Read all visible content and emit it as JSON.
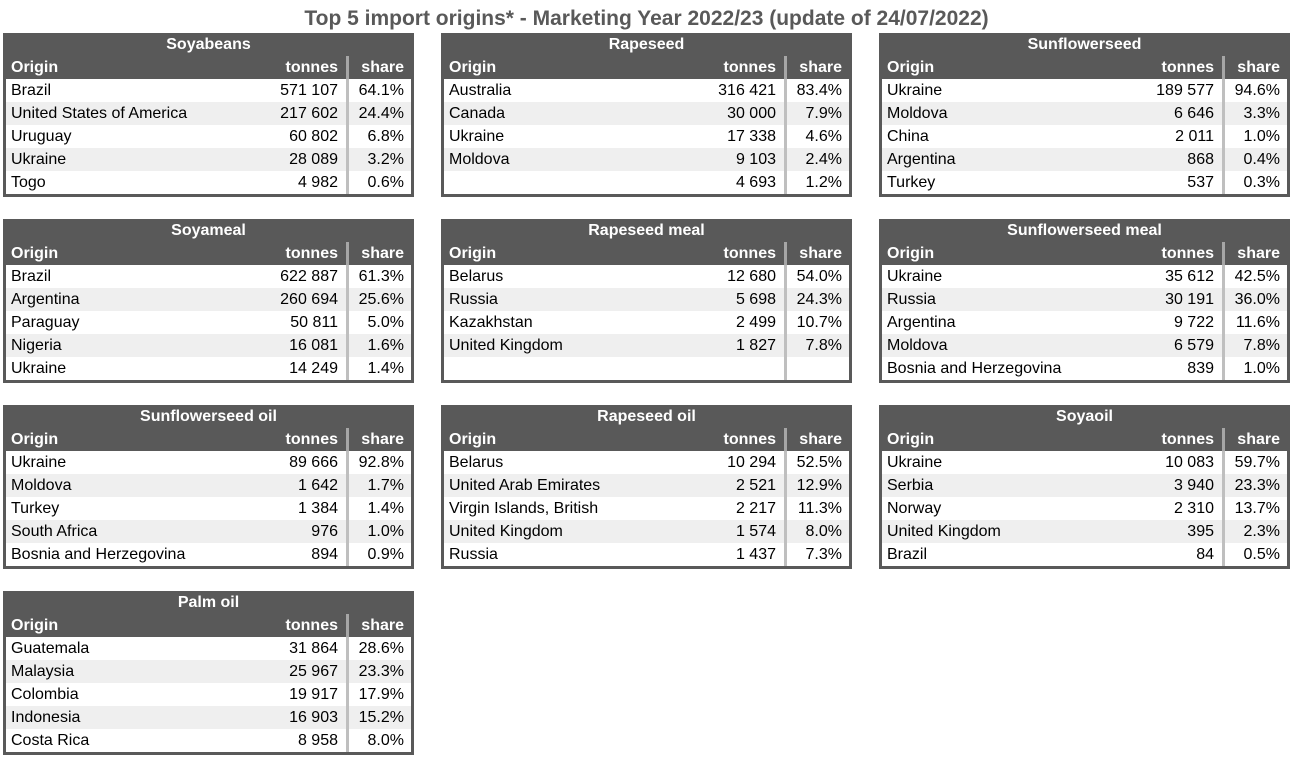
{
  "page_title": "Top 5 import origins* - Marketing Year 2022/23 (update of 24/07/2022)",
  "columns": {
    "origin": "Origin",
    "tonnes": "tonnes",
    "share": "share"
  },
  "colors": {
    "header_bg": "#595959",
    "header_text": "#ffffff",
    "stripe": "#efefef",
    "border": "#595959",
    "separator": "#bfbfbf",
    "separator_header": "#a6a6a6",
    "title_color": "#595959",
    "body_text": "#000000"
  },
  "tables": [
    {
      "title": "Soyabeans",
      "rows": [
        {
          "origin": "Brazil",
          "tonnes": "571 107",
          "share": "64.1%"
        },
        {
          "origin": "United States of America",
          "tonnes": "217 602",
          "share": "24.4%"
        },
        {
          "origin": "Uruguay",
          "tonnes": "60 802",
          "share": "6.8%"
        },
        {
          "origin": "Ukraine",
          "tonnes": "28 089",
          "share": "3.2%"
        },
        {
          "origin": "Togo",
          "tonnes": "4 982",
          "share": "0.6%"
        }
      ]
    },
    {
      "title": "Rapeseed",
      "rows": [
        {
          "origin": "Australia",
          "tonnes": "316 421",
          "share": "83.4%"
        },
        {
          "origin": "Canada",
          "tonnes": "30 000",
          "share": "7.9%"
        },
        {
          "origin": "Ukraine",
          "tonnes": "17 338",
          "share": "4.6%"
        },
        {
          "origin": "Moldova",
          "tonnes": "9 103",
          "share": "2.4%"
        },
        {
          "origin": "",
          "tonnes": "4 693",
          "share": "1.2%"
        }
      ]
    },
    {
      "title": "Sunflowerseed",
      "rows": [
        {
          "origin": "Ukraine",
          "tonnes": "189 577",
          "share": "94.6%"
        },
        {
          "origin": "Moldova",
          "tonnes": "6 646",
          "share": "3.3%"
        },
        {
          "origin": "China",
          "tonnes": "2 011",
          "share": "1.0%"
        },
        {
          "origin": "Argentina",
          "tonnes": "868",
          "share": "0.4%"
        },
        {
          "origin": "Turkey",
          "tonnes": "537",
          "share": "0.3%"
        }
      ]
    },
    {
      "title": "Soyameal",
      "rows": [
        {
          "origin": "Brazil",
          "tonnes": "622 887",
          "share": "61.3%"
        },
        {
          "origin": "Argentina",
          "tonnes": "260 694",
          "share": "25.6%"
        },
        {
          "origin": "Paraguay",
          "tonnes": "50 811",
          "share": "5.0%"
        },
        {
          "origin": "Nigeria",
          "tonnes": "16 081",
          "share": "1.6%"
        },
        {
          "origin": "Ukraine",
          "tonnes": "14 249",
          "share": "1.4%"
        }
      ]
    },
    {
      "title": "Rapeseed meal",
      "rows": [
        {
          "origin": "Belarus",
          "tonnes": "12 680",
          "share": "54.0%"
        },
        {
          "origin": "Russia",
          "tonnes": "5 698",
          "share": "24.3%"
        },
        {
          "origin": "Kazakhstan",
          "tonnes": "2 499",
          "share": "10.7%"
        },
        {
          "origin": "United Kingdom",
          "tonnes": "1 827",
          "share": "7.8%"
        },
        {
          "origin": "",
          "tonnes": "",
          "share": ""
        }
      ]
    },
    {
      "title": "Sunflowerseed meal",
      "rows": [
        {
          "origin": "Ukraine",
          "tonnes": "35 612",
          "share": "42.5%"
        },
        {
          "origin": "Russia",
          "tonnes": "30 191",
          "share": "36.0%"
        },
        {
          "origin": "Argentina",
          "tonnes": "9 722",
          "share": "11.6%"
        },
        {
          "origin": "Moldova",
          "tonnes": "6 579",
          "share": "7.8%"
        },
        {
          "origin": "Bosnia and Herzegovina",
          "tonnes": "839",
          "share": "1.0%"
        }
      ]
    },
    {
      "title": "Sunflowerseed oil",
      "rows": [
        {
          "origin": "Ukraine",
          "tonnes": "89 666",
          "share": "92.8%"
        },
        {
          "origin": "Moldova",
          "tonnes": "1 642",
          "share": "1.7%"
        },
        {
          "origin": "Turkey",
          "tonnes": "1 384",
          "share": "1.4%"
        },
        {
          "origin": "South Africa",
          "tonnes": "976",
          "share": "1.0%"
        },
        {
          "origin": "Bosnia and Herzegovina",
          "tonnes": "894",
          "share": "0.9%"
        }
      ]
    },
    {
      "title": "Rapeseed oil",
      "rows": [
        {
          "origin": "Belarus",
          "tonnes": "10 294",
          "share": "52.5%"
        },
        {
          "origin": "United Arab Emirates",
          "tonnes": "2 521",
          "share": "12.9%"
        },
        {
          "origin": "Virgin Islands, British",
          "tonnes": "2 217",
          "share": "11.3%"
        },
        {
          "origin": "United Kingdom",
          "tonnes": "1 574",
          "share": "8.0%"
        },
        {
          "origin": "Russia",
          "tonnes": "1 437",
          "share": "7.3%"
        }
      ]
    },
    {
      "title": "Soyaoil",
      "rows": [
        {
          "origin": "Ukraine",
          "tonnes": "10 083",
          "share": "59.7%"
        },
        {
          "origin": "Serbia",
          "tonnes": "3 940",
          "share": "23.3%"
        },
        {
          "origin": "Norway",
          "tonnes": "2 310",
          "share": "13.7%"
        },
        {
          "origin": "United Kingdom",
          "tonnes": "395",
          "share": "2.3%"
        },
        {
          "origin": "Brazil",
          "tonnes": "84",
          "share": "0.5%"
        }
      ]
    },
    {
      "title": "Palm oil",
      "rows": [
        {
          "origin": "Guatemala",
          "tonnes": "31 864",
          "share": "28.6%"
        },
        {
          "origin": "Malaysia",
          "tonnes": "25 967",
          "share": "23.3%"
        },
        {
          "origin": "Colombia",
          "tonnes": "19 917",
          "share": "17.9%"
        },
        {
          "origin": "Indonesia",
          "tonnes": "16 903",
          "share": "15.2%"
        },
        {
          "origin": "Costa Rica",
          "tonnes": "8 958",
          "share": "8.0%"
        }
      ]
    }
  ],
  "chart_data": [
    {
      "type": "table",
      "title": "Soyabeans",
      "columns": [
        "Origin",
        "tonnes",
        "share (%)"
      ],
      "rows": [
        [
          "Brazil",
          571107,
          64.1
        ],
        [
          "United States of America",
          217602,
          24.4
        ],
        [
          "Uruguay",
          60802,
          6.8
        ],
        [
          "Ukraine",
          28089,
          3.2
        ],
        [
          "Togo",
          4982,
          0.6
        ]
      ]
    },
    {
      "type": "table",
      "title": "Rapeseed",
      "columns": [
        "Origin",
        "tonnes",
        "share (%)"
      ],
      "rows": [
        [
          "Australia",
          316421,
          83.4
        ],
        [
          "Canada",
          30000,
          7.9
        ],
        [
          "Ukraine",
          17338,
          4.6
        ],
        [
          "Moldova",
          9103,
          2.4
        ],
        [
          "",
          4693,
          1.2
        ]
      ]
    },
    {
      "type": "table",
      "title": "Sunflowerseed",
      "columns": [
        "Origin",
        "tonnes",
        "share (%)"
      ],
      "rows": [
        [
          "Ukraine",
          189577,
          94.6
        ],
        [
          "Moldova",
          6646,
          3.3
        ],
        [
          "China",
          2011,
          1.0
        ],
        [
          "Argentina",
          868,
          0.4
        ],
        [
          "Turkey",
          537,
          0.3
        ]
      ]
    },
    {
      "type": "table",
      "title": "Soyameal",
      "columns": [
        "Origin",
        "tonnes",
        "share (%)"
      ],
      "rows": [
        [
          "Brazil",
          622887,
          61.3
        ],
        [
          "Argentina",
          260694,
          25.6
        ],
        [
          "Paraguay",
          50811,
          5.0
        ],
        [
          "Nigeria",
          16081,
          1.6
        ],
        [
          "Ukraine",
          14249,
          1.4
        ]
      ]
    },
    {
      "type": "table",
      "title": "Rapeseed meal",
      "columns": [
        "Origin",
        "tonnes",
        "share (%)"
      ],
      "rows": [
        [
          "Belarus",
          12680,
          54.0
        ],
        [
          "Russia",
          5698,
          24.3
        ],
        [
          "Kazakhstan",
          2499,
          10.7
        ],
        [
          "United Kingdom",
          1827,
          7.8
        ]
      ]
    },
    {
      "type": "table",
      "title": "Sunflowerseed meal",
      "columns": [
        "Origin",
        "tonnes",
        "share (%)"
      ],
      "rows": [
        [
          "Ukraine",
          35612,
          42.5
        ],
        [
          "Russia",
          30191,
          36.0
        ],
        [
          "Argentina",
          9722,
          11.6
        ],
        [
          "Moldova",
          6579,
          7.8
        ],
        [
          "Bosnia and Herzegovina",
          839,
          1.0
        ]
      ]
    },
    {
      "type": "table",
      "title": "Sunflowerseed oil",
      "columns": [
        "Origin",
        "tonnes",
        "share (%)"
      ],
      "rows": [
        [
          "Ukraine",
          89666,
          92.8
        ],
        [
          "Moldova",
          1642,
          1.7
        ],
        [
          "Turkey",
          1384,
          1.4
        ],
        [
          "South Africa",
          976,
          1.0
        ],
        [
          "Bosnia and Herzegovina",
          894,
          0.9
        ]
      ]
    },
    {
      "type": "table",
      "title": "Rapeseed oil",
      "columns": [
        "Origin",
        "tonnes",
        "share (%)"
      ],
      "rows": [
        [
          "Belarus",
          10294,
          52.5
        ],
        [
          "United Arab Emirates",
          2521,
          12.9
        ],
        [
          "Virgin Islands, British",
          2217,
          11.3
        ],
        [
          "United Kingdom",
          1574,
          8.0
        ],
        [
          "Russia",
          1437,
          7.3
        ]
      ]
    },
    {
      "type": "table",
      "title": "Soyaoil",
      "columns": [
        "Origin",
        "tonnes",
        "share (%)"
      ],
      "rows": [
        [
          "Ukraine",
          10083,
          59.7
        ],
        [
          "Serbia",
          3940,
          23.3
        ],
        [
          "Norway",
          2310,
          13.7
        ],
        [
          "United Kingdom",
          395,
          2.3
        ],
        [
          "Brazil",
          84,
          0.5
        ]
      ]
    },
    {
      "type": "table",
      "title": "Palm oil",
      "columns": [
        "Origin",
        "tonnes",
        "share (%)"
      ],
      "rows": [
        [
          "Guatemala",
          31864,
          28.6
        ],
        [
          "Malaysia",
          25967,
          23.3
        ],
        [
          "Colombia",
          19917,
          17.9
        ],
        [
          "Indonesia",
          16903,
          15.2
        ],
        [
          "Costa Rica",
          8958,
          8.0
        ]
      ]
    }
  ]
}
